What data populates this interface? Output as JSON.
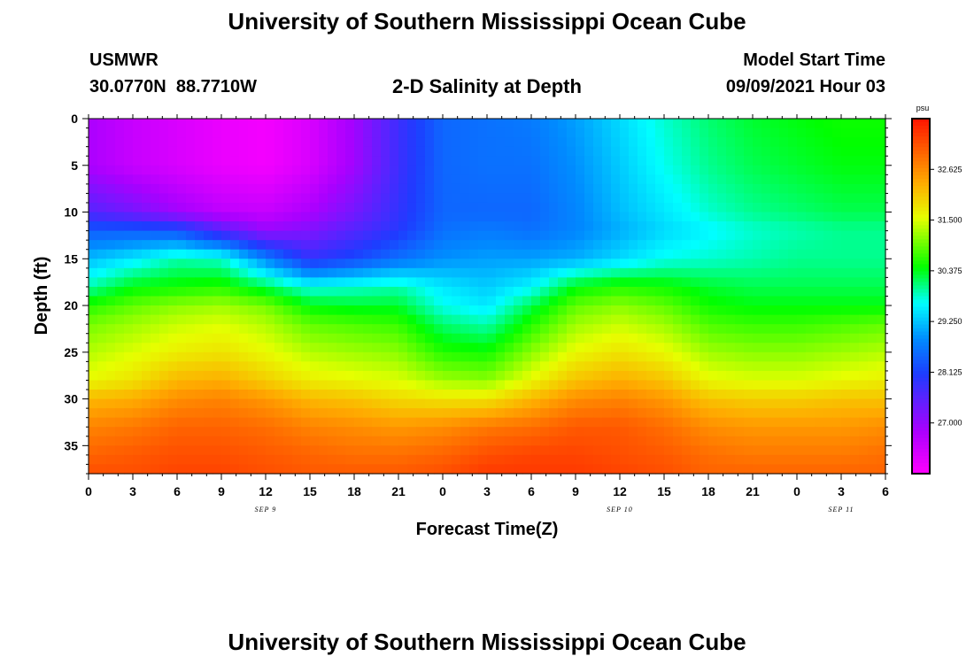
{
  "header": {
    "title": "University of Southern Mississippi Ocean Cube",
    "station": "USMWR",
    "coords": "30.0770N  88.7710W",
    "subtitle": "2-D Salinity at Depth",
    "model_label": "Model Start Time",
    "model_time": "09/09/2021 Hour 03"
  },
  "footer": {
    "title": "University of Southern Mississippi Ocean Cube"
  },
  "colorbar": {
    "unit": "psu",
    "labels": [
      "32.625",
      "31.500",
      "30.375",
      "29.250",
      "28.125",
      "27.000"
    ],
    "min": 25.875,
    "max": 33.75
  },
  "chart_data": {
    "type": "heatmap",
    "title": "2-D Salinity at Depth",
    "xlabel": "Forecast Time(Z)",
    "ylabel": "Depth (ft)",
    "x_tick_labels": [
      "0",
      "3",
      "6",
      "9",
      "12",
      "15",
      "18",
      "21",
      "0",
      "3",
      "6",
      "9",
      "12",
      "15",
      "18",
      "21",
      "0",
      "3",
      "6"
    ],
    "x_range_hours": [
      0,
      54
    ],
    "date_labels": [
      {
        "text": "SEP 9",
        "hour": 12
      },
      {
        "text": "SEP 10",
        "hour": 36
      },
      {
        "text": "SEP 11",
        "hour": 51
      }
    ],
    "y_tick_labels": [
      "0",
      "5",
      "10",
      "15",
      "20",
      "25",
      "30",
      "35"
    ],
    "y_range_ft": [
      0,
      38
    ],
    "z_unit": "psu",
    "z_range": [
      25.875,
      33.75
    ],
    "time_hours": [
      0,
      3,
      6,
      9,
      12,
      15,
      18,
      21,
      24,
      27,
      30,
      33,
      36,
      39,
      42,
      45,
      48,
      51,
      54
    ],
    "depth_ft": [
      0,
      5,
      10,
      12,
      15,
      18,
      20,
      22,
      25,
      28,
      30,
      33,
      36,
      38
    ],
    "salinity_psu": [
      [
        26.8,
        26.5,
        26.3,
        26.1,
        26.0,
        26.3,
        26.9,
        27.8,
        28.5,
        28.6,
        28.7,
        29.0,
        29.4,
        29.8,
        30.1,
        30.3,
        30.4,
        30.5,
        30.5
      ],
      [
        26.8,
        26.5,
        26.3,
        26.1,
        26.0,
        26.3,
        26.9,
        27.8,
        28.5,
        28.6,
        28.6,
        28.9,
        29.3,
        29.7,
        30.0,
        30.2,
        30.3,
        30.4,
        30.4
      ],
      [
        27.6,
        27.3,
        26.9,
        26.6,
        26.5,
        26.8,
        27.3,
        27.9,
        28.5,
        28.5,
        28.5,
        28.8,
        29.2,
        29.5,
        29.8,
        30.0,
        30.1,
        30.2,
        30.2
      ],
      [
        28.4,
        28.4,
        28.3,
        27.6,
        27.0,
        27.2,
        27.6,
        28.0,
        28.6,
        28.7,
        28.6,
        28.8,
        29.1,
        29.4,
        29.6,
        29.8,
        29.9,
        30.0,
        30.0
      ],
      [
        29.2,
        29.5,
        29.9,
        29.8,
        28.8,
        27.9,
        28.2,
        28.6,
        28.9,
        29.0,
        29.0,
        29.1,
        29.4,
        29.7,
        29.8,
        29.9,
        30.0,
        30.0,
        30.0
      ],
      [
        29.9,
        30.4,
        30.5,
        30.6,
        30.2,
        29.7,
        29.8,
        29.9,
        29.5,
        29.3,
        29.6,
        30.4,
        30.6,
        30.5,
        30.3,
        30.2,
        30.2,
        30.2,
        30.2
      ],
      [
        30.6,
        30.9,
        31.1,
        31.2,
        31.0,
        30.4,
        30.3,
        30.3,
        29.7,
        29.5,
        30.2,
        30.9,
        31.1,
        30.9,
        30.5,
        30.4,
        30.4,
        30.4,
        30.4
      ],
      [
        31.0,
        31.2,
        31.4,
        31.5,
        31.3,
        30.9,
        30.8,
        30.7,
        30.1,
        29.9,
        30.6,
        31.2,
        31.4,
        31.2,
        30.8,
        30.7,
        30.7,
        30.8,
        30.9
      ],
      [
        31.3,
        31.5,
        31.7,
        31.8,
        31.6,
        31.3,
        31.2,
        31.1,
        30.6,
        30.5,
        31.1,
        31.6,
        31.8,
        31.6,
        31.2,
        31.1,
        31.1,
        31.2,
        31.3
      ],
      [
        31.6,
        31.8,
        32.2,
        32.3,
        32.0,
        31.7,
        31.6,
        31.5,
        31.2,
        31.1,
        31.6,
        32.1,
        32.3,
        32.1,
        31.6,
        31.5,
        31.5,
        31.6,
        31.7
      ],
      [
        32.2,
        32.3,
        32.6,
        32.7,
        32.5,
        32.2,
        32.1,
        31.9,
        31.8,
        31.8,
        32.2,
        32.6,
        32.7,
        32.5,
        32.1,
        32.0,
        32.0,
        32.1,
        32.1
      ],
      [
        32.7,
        32.8,
        33.0,
        33.0,
        32.9,
        32.7,
        32.6,
        32.5,
        32.6,
        32.8,
        32.9,
        33.1,
        33.1,
        32.9,
        32.6,
        32.5,
        32.5,
        32.5,
        32.6
      ],
      [
        33.0,
        33.1,
        33.2,
        33.2,
        33.1,
        33.0,
        32.9,
        32.9,
        33.0,
        33.2,
        33.3,
        33.3,
        33.2,
        33.1,
        32.9,
        32.8,
        32.8,
        32.8,
        32.9
      ],
      [
        33.2,
        33.2,
        33.3,
        33.3,
        33.2,
        33.1,
        33.1,
        33.1,
        33.2,
        33.4,
        33.4,
        33.4,
        33.3,
        33.2,
        33.0,
        33.0,
        33.0,
        33.0,
        33.0
      ]
    ]
  }
}
